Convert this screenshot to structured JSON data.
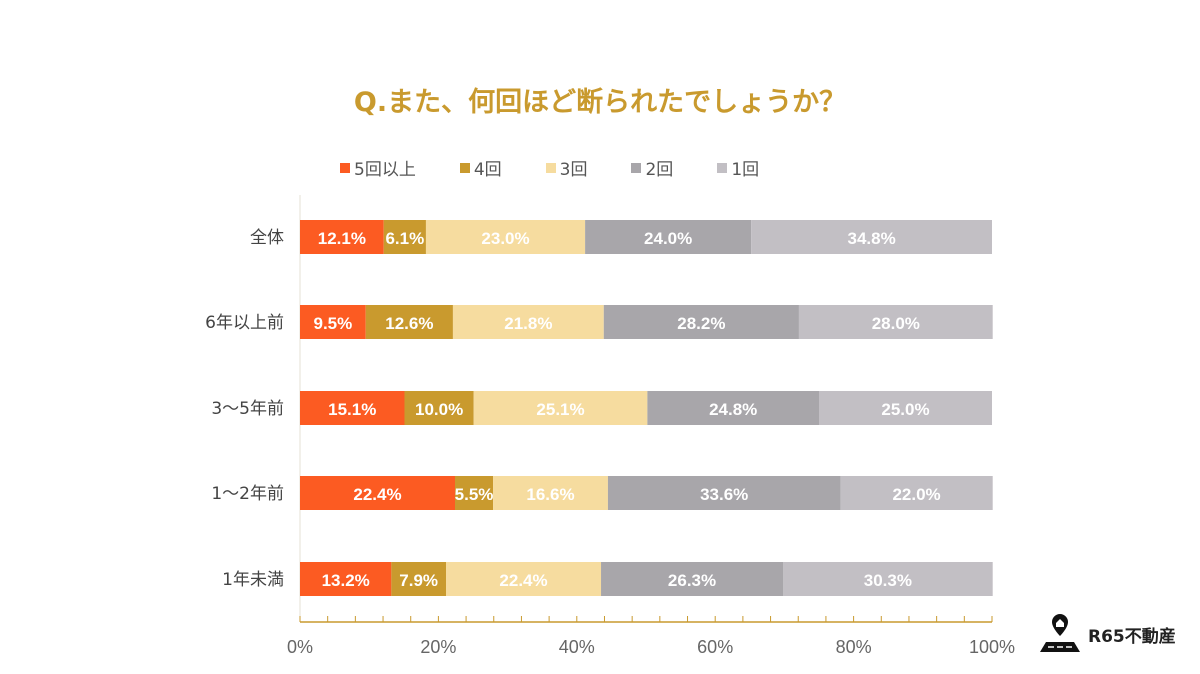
{
  "chart_data": {
    "type": "bar",
    "orientation": "horizontal",
    "stacked": true,
    "title": "Q.また、何回ほど断られたでしょうか？",
    "categories": [
      "全体",
      "6年以上前",
      "3〜5年前",
      "1〜2年前",
      "1年未満"
    ],
    "series": [
      {
        "name": "5回以上",
        "color": "#fc5b22",
        "values": [
          12.1,
          9.5,
          15.1,
          22.4,
          13.2
        ]
      },
      {
        "name": "4回",
        "color": "#c99a2e",
        "values": [
          6.1,
          12.6,
          10.0,
          5.5,
          7.9
        ]
      },
      {
        "name": "3回",
        "color": "#f6dc9f",
        "values": [
          23.0,
          21.8,
          25.1,
          16.6,
          22.4
        ]
      },
      {
        "name": "2回",
        "color": "#a8a6aa",
        "values": [
          24.0,
          28.2,
          24.8,
          33.6,
          26.3
        ]
      },
      {
        "name": "1回",
        "color": "#c2bfc4",
        "values": [
          34.8,
          28.0,
          25.0,
          22.0,
          30.3
        ]
      }
    ],
    "xlim": [
      0,
      100
    ],
    "xticks": [
      "0%",
      "20%",
      "40%",
      "60%",
      "80%",
      "100%"
    ],
    "legend": "top",
    "grid": false
  },
  "logo": {
    "text": "R65不動産"
  }
}
